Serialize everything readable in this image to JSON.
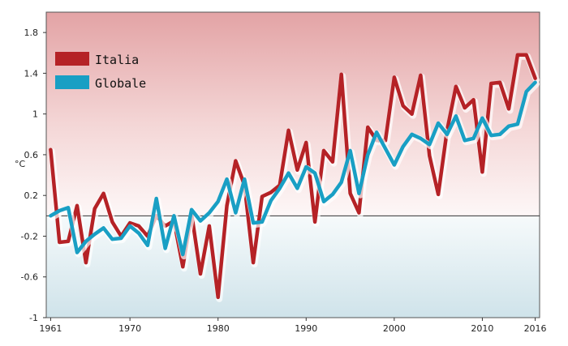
{
  "chart_data": {
    "type": "line",
    "ylabel": "°C",
    "ylim": [
      -1.0,
      2.0
    ],
    "xlim": [
      1960.5,
      2016.5
    ],
    "y_ticks": [
      1.8,
      1.4,
      1,
      0.6,
      0.2,
      -0.2,
      -0.6,
      -1
    ],
    "y_tick_labels": [
      "1.8",
      "1.4",
      "1",
      "0.6",
      "0.2",
      "-0.2",
      "-0.6",
      "-1"
    ],
    "x_ticks": [
      1961,
      1970,
      1980,
      1990,
      2000,
      2010,
      2016
    ],
    "x_tick_labels": [
      "1961",
      "1970",
      "1980",
      "1990",
      "2000",
      "2010",
      "2016"
    ],
    "baseline": 0,
    "legend_position": "top-left",
    "background": "gradient: red above 0, light blue below 0",
    "x": [
      1961,
      1962,
      1963,
      1964,
      1965,
      1966,
      1967,
      1968,
      1969,
      1970,
      1971,
      1972,
      1973,
      1974,
      1975,
      1976,
      1977,
      1978,
      1979,
      1980,
      1981,
      1982,
      1983,
      1984,
      1985,
      1986,
      1987,
      1988,
      1989,
      1990,
      1991,
      1992,
      1993,
      1994,
      1995,
      1996,
      1997,
      1998,
      1999,
      2000,
      2001,
      2002,
      2003,
      2004,
      2005,
      2006,
      2007,
      2008,
      2009,
      2010,
      2011,
      2012,
      2013,
      2014,
      2015,
      2016
    ],
    "series": [
      {
        "name": "Italia",
        "color": "#b52226",
        "values": [
          0.65,
          -0.26,
          -0.25,
          0.1,
          -0.46,
          0.07,
          0.22,
          -0.06,
          -0.2,
          -0.07,
          -0.1,
          -0.2,
          0.0,
          -0.1,
          -0.05,
          -0.5,
          0.02,
          -0.57,
          -0.1,
          -0.8,
          0.1,
          0.54,
          0.3,
          -0.46,
          0.19,
          0.23,
          0.3,
          0.84,
          0.45,
          0.72,
          -0.06,
          0.64,
          0.53,
          1.39,
          0.22,
          0.03,
          0.87,
          0.74,
          0.74,
          1.36,
          1.08,
          1.0,
          1.38,
          0.59,
          0.21,
          0.84,
          1.27,
          1.06,
          1.14,
          0.43,
          1.3,
          1.31,
          1.05,
          1.58,
          1.58,
          1.35
        ]
      },
      {
        "name": "Globale",
        "color": "#199fc4",
        "values": [
          0.0,
          0.05,
          0.08,
          -0.36,
          -0.25,
          -0.18,
          -0.12,
          -0.23,
          -0.22,
          -0.1,
          -0.17,
          -0.29,
          0.17,
          -0.32,
          0.0,
          -0.38,
          0.06,
          -0.05,
          0.03,
          0.14,
          0.36,
          0.03,
          0.36,
          -0.07,
          -0.06,
          0.15,
          0.27,
          0.42,
          0.27,
          0.48,
          0.42,
          0.14,
          0.21,
          0.33,
          0.64,
          0.22,
          0.6,
          0.82,
          0.66,
          0.5,
          0.68,
          0.8,
          0.76,
          0.7,
          0.91,
          0.8,
          0.98,
          0.74,
          0.76,
          0.96,
          0.79,
          0.8,
          0.88,
          0.9,
          1.22,
          1.31
        ]
      }
    ]
  }
}
